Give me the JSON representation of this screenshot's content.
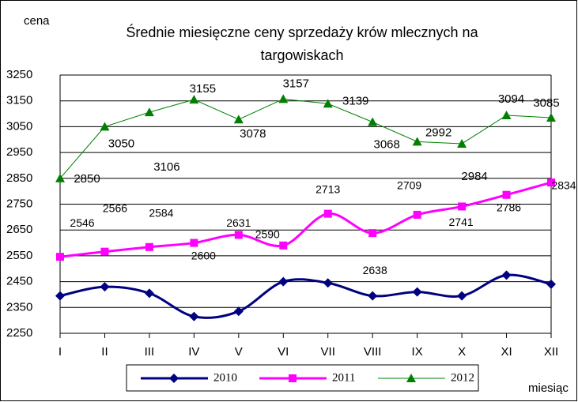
{
  "chart_data": {
    "type": "line",
    "title": "Średnie miesięczne ceny sprzedaży krów mlecznych na targowiskach",
    "y_label": "cena",
    "x_label": "miesiąc",
    "categories": [
      "I",
      "II",
      "III",
      "IV",
      "V",
      "VI",
      "VII",
      "VIII",
      "IX",
      "X",
      "XI",
      "XII"
    ],
    "ylim": [
      2250,
      3250
    ],
    "yticks": [
      2250,
      2350,
      2450,
      2550,
      2650,
      2750,
      2850,
      2950,
      3050,
      3150,
      3250
    ],
    "grid": true,
    "legend": "bottom",
    "series": [
      {
        "name": "2010",
        "color": "#000080",
        "marker": "diamond",
        "smooth": true,
        "values": [
          2395,
          2430,
          2405,
          2315,
          2335,
          2450,
          2445,
          2395,
          2410,
          2395,
          2475,
          2440
        ]
      },
      {
        "name": "2011",
        "color": "#ff00ff",
        "marker": "square",
        "smooth": true,
        "values": [
          2546,
          2566,
          2584,
          2600,
          2631,
          2590,
          2713,
          2638,
          2709,
          2741,
          2786,
          2834
        ],
        "show_labels": true
      },
      {
        "name": "2012",
        "color": "#008000",
        "marker": "triangle",
        "smooth": false,
        "values": [
          2850,
          3050,
          3106,
          3155,
          3078,
          3157,
          3139,
          3068,
          2992,
          2984,
          3094,
          3085
        ],
        "show_labels": true
      }
    ]
  }
}
